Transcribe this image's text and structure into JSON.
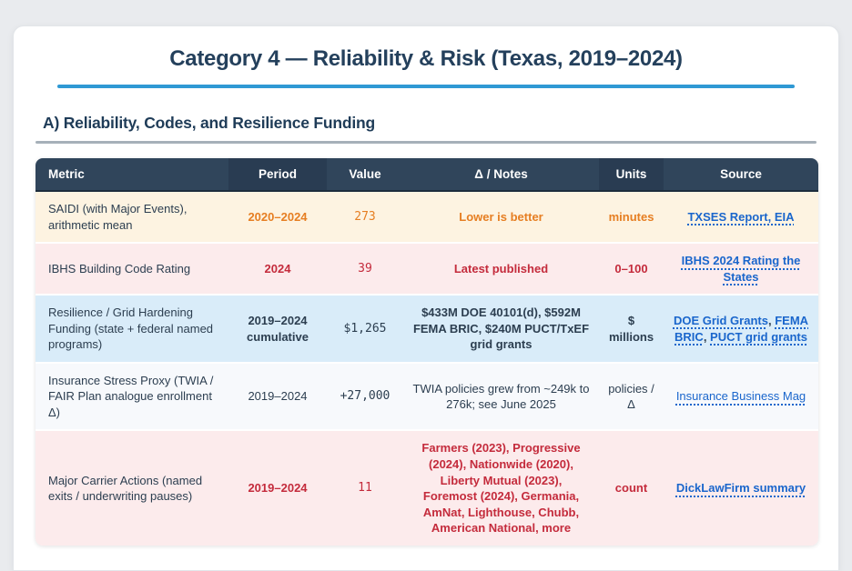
{
  "header": {
    "title": "Category 4 — Reliability & Risk (Texas, 2019–2024)"
  },
  "section": {
    "heading": "A) Reliability, Codes, and Resilience Funding"
  },
  "table": {
    "columns": [
      "Metric",
      "Period",
      "Value",
      "Δ / Notes",
      "Units",
      "Source"
    ],
    "link_separator": ", ",
    "rows": [
      {
        "metric": "SAIDI (with Major Events), arithmetic mean",
        "period": "2020–2024",
        "value": "273",
        "notes": "Lower is better",
        "units": "minutes",
        "links": [
          "TXSES Report, EIA"
        ]
      },
      {
        "metric": "IBHS Building Code Rating",
        "period": "2024",
        "value": "39",
        "notes": "Latest published",
        "units": "0–100",
        "links": [
          "IBHS 2024 Rating the States"
        ]
      },
      {
        "metric": "Resilience / Grid Hardening Funding (state + federal named programs)",
        "period": "2019–2024\ncumulative",
        "value": "$1,265",
        "notes": "$433M DOE 40101(d), $592M FEMA BRIC, $240M PUCT/TxEF grid grants",
        "units": "$\nmillions",
        "links": [
          "DOE Grid Grants",
          "FEMA BRIC",
          "PUCT grid grants"
        ]
      },
      {
        "metric": "Insurance Stress Proxy (TWIA / FAIR Plan analogue enrollment Δ)",
        "period": "2019–2024",
        "value": "+27,000",
        "notes": "TWIA policies grew from ~249k to 276k; see June 2025",
        "units": "policies /\nΔ",
        "links": [
          "Insurance Business Mag"
        ]
      },
      {
        "metric": "Major Carrier Actions (named exits / underwriting pauses)",
        "period": "2019–2024",
        "value": "11",
        "notes": "Farmers (2023), Progressive (2024), Nationwide (2020), Liberty Mutual (2023), Foremost (2024), Germania, AmNat, Lighthouse, Chubb, American National, more",
        "units": "count",
        "links": [
          "DickLawFirm summary"
        ]
      }
    ]
  },
  "colors": {
    "accent_bar": "#2f99d4",
    "header_bg": "#30455b",
    "header_bg_alt": "#293c52",
    "link_blue": "#1a66cc",
    "navy_text": "#2c3e50",
    "orange": "#e67e22",
    "red": "#c42b3c",
    "row_amber": "#fdf3e1",
    "row_pink": "#fcebec",
    "row_blue": "#d9ecf9",
    "row_plain": "#f7f9fc",
    "page_bg": "#e9ebee",
    "card_bg": "#ffffff"
  }
}
